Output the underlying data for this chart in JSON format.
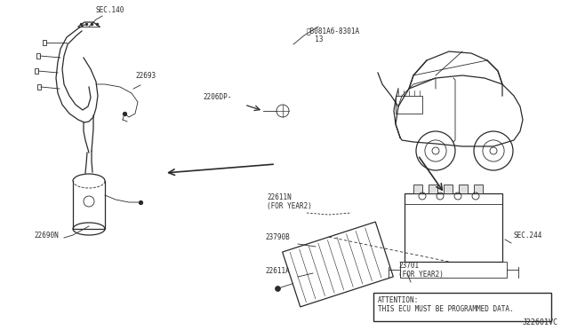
{
  "bg_color": "#ffffff",
  "line_color": "#2a2a2a",
  "labels": {
    "SEC140": "SEC.140",
    "22693": "22693",
    "22690N": "22690N",
    "2206DP": "2206DP-",
    "part_num": "ⓘB081A6-8301A\n  13",
    "SEC244": "SEC.244",
    "22611N": "22611N\n(FOR YEAR2)",
    "23790B": "23790B",
    "22611A": "22611A",
    "23701": "23701\n(FOR YEAR2)",
    "attention": "ATTENTION:\nTHIS ECU MUST BE PROGRAMMED DATA.",
    "diagram_code": "J22601VC"
  }
}
